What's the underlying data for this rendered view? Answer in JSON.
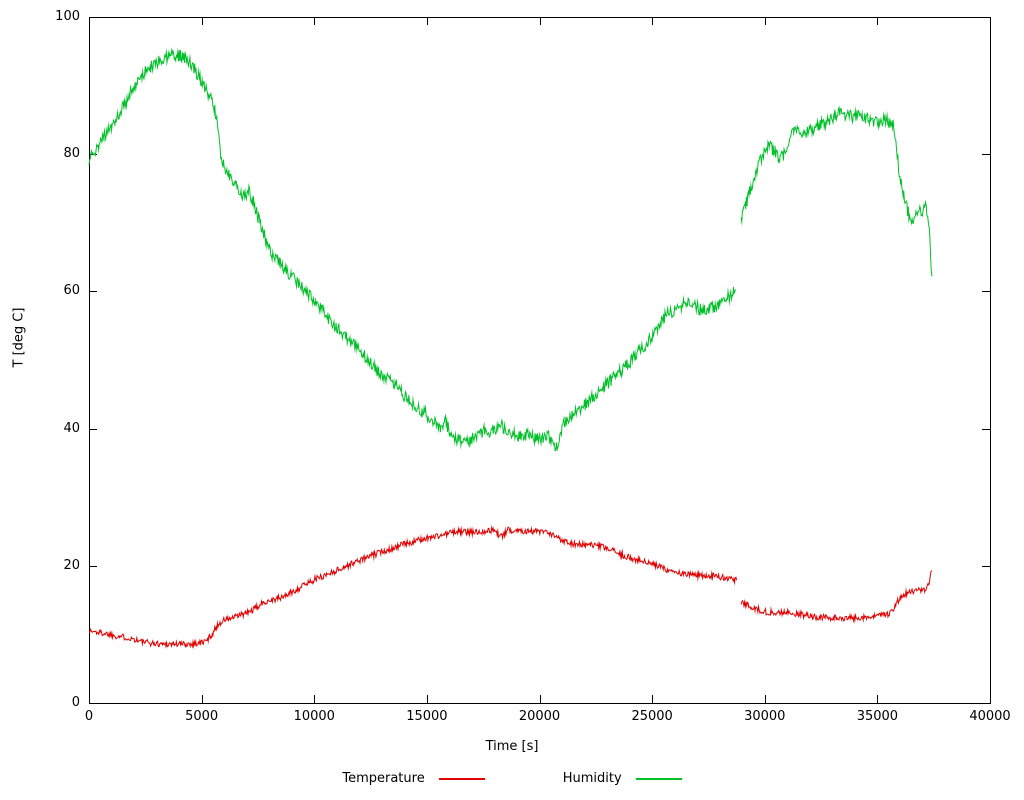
{
  "chart_data": {
    "type": "line",
    "title": "",
    "xlabel": "Time [s]",
    "ylabel": "T [deg C]",
    "xlim": [
      0,
      40000
    ],
    "ylim": [
      0,
      100
    ],
    "xticks": [
      0,
      5000,
      10000,
      15000,
      20000,
      25000,
      30000,
      35000,
      40000
    ],
    "yticks": [
      0,
      20,
      40,
      60,
      80,
      100
    ],
    "grid": false,
    "legend_position": "bottom-center",
    "background": "#ffffff",
    "axis_color": "#000000",
    "series": [
      {
        "name": "Temperature",
        "color": "#e10000",
        "noise": 0.45,
        "segments": [
          [
            [
              0,
              10.5
            ],
            [
              400,
              10.3
            ],
            [
              800,
              10.1
            ],
            [
              1200,
              9.8
            ],
            [
              1600,
              9.6
            ],
            [
              2000,
              9.3
            ],
            [
              2400,
              8.9
            ],
            [
              2800,
              8.7
            ],
            [
              3200,
              8.6
            ],
            [
              3600,
              8.6
            ],
            [
              4000,
              8.6
            ],
            [
              4400,
              8.6
            ],
            [
              4800,
              8.7
            ],
            [
              5200,
              9.0
            ],
            [
              5500,
              10.2
            ],
            [
              5700,
              11.3
            ],
            [
              5900,
              11.9
            ],
            [
              6100,
              12.2
            ],
            [
              6400,
              12.4
            ],
            [
              6700,
              12.8
            ],
            [
              7000,
              13.1
            ],
            [
              7300,
              13.6
            ],
            [
              7600,
              14.3
            ],
            [
              7900,
              14.9
            ],
            [
              8200,
              15.1
            ],
            [
              8500,
              15.3
            ],
            [
              8800,
              15.8
            ],
            [
              9100,
              16.3
            ],
            [
              9400,
              16.9
            ],
            [
              9700,
              17.5
            ],
            [
              10000,
              18.0
            ],
            [
              10400,
              18.5
            ],
            [
              10800,
              19.1
            ],
            [
              11200,
              19.6
            ],
            [
              11600,
              20.2
            ],
            [
              12000,
              20.8
            ],
            [
              12400,
              21.3
            ],
            [
              12800,
              21.8
            ],
            [
              13200,
              22.3
            ],
            [
              13600,
              22.7
            ],
            [
              14000,
              23.2
            ],
            [
              14400,
              23.5
            ],
            [
              14800,
              23.9
            ],
            [
              15200,
              24.2
            ],
            [
              15600,
              24.4
            ],
            [
              16000,
              24.8
            ],
            [
              16400,
              25.0
            ],
            [
              16800,
              24.9
            ],
            [
              17200,
              24.9
            ],
            [
              17600,
              25.1
            ],
            [
              18000,
              25.2
            ],
            [
              18300,
              24.2
            ],
            [
              18600,
              25.2
            ],
            [
              19000,
              25.2
            ],
            [
              19400,
              25.1
            ],
            [
              19800,
              25.0
            ],
            [
              20200,
              24.9
            ],
            [
              20600,
              24.4
            ],
            [
              21000,
              23.8
            ],
            [
              21400,
              23.3
            ],
            [
              21800,
              23.1
            ],
            [
              22200,
              23.0
            ],
            [
              22600,
              22.9
            ],
            [
              23000,
              22.5
            ],
            [
              23400,
              22.0
            ],
            [
              23800,
              21.4
            ],
            [
              24200,
              21.0
            ],
            [
              24600,
              20.6
            ],
            [
              25000,
              20.2
            ],
            [
              25400,
              19.8
            ],
            [
              25800,
              19.3
            ],
            [
              26200,
              18.9
            ],
            [
              26600,
              18.7
            ],
            [
              27000,
              18.6
            ],
            [
              27400,
              18.6
            ],
            [
              27800,
              18.5
            ],
            [
              28200,
              18.3
            ],
            [
              28600,
              18.0
            ],
            [
              28750,
              17.9
            ]
          ],
          [
            [
              28950,
              14.6
            ],
            [
              29200,
              14.3
            ],
            [
              29600,
              13.8
            ],
            [
              30000,
              13.3
            ],
            [
              30400,
              13.2
            ],
            [
              30800,
              13.2
            ],
            [
              31200,
              13.1
            ],
            [
              31600,
              12.9
            ],
            [
              32000,
              12.7
            ],
            [
              32400,
              12.5
            ],
            [
              32800,
              12.4
            ],
            [
              33200,
              12.4
            ],
            [
              33600,
              12.4
            ],
            [
              34000,
              12.4
            ],
            [
              34400,
              12.5
            ],
            [
              34800,
              12.6
            ],
            [
              35200,
              12.7
            ],
            [
              35500,
              13.0
            ],
            [
              35700,
              13.8
            ],
            [
              35900,
              14.8
            ],
            [
              36100,
              15.6
            ],
            [
              36300,
              16.0
            ],
            [
              36600,
              16.2
            ],
            [
              36900,
              16.4
            ],
            [
              37100,
              16.6
            ],
            [
              37250,
              17.0
            ],
            [
              37350,
              18.2
            ],
            [
              37420,
              19.3
            ]
          ]
        ]
      },
      {
        "name": "Humidity",
        "color": "#00c028",
        "noise": 0.9,
        "segments": [
          [
            [
              0,
              79.0
            ],
            [
              200,
              80.3
            ],
            [
              400,
              81.0
            ],
            [
              600,
              82.4
            ],
            [
              800,
              83.0
            ],
            [
              1000,
              84.3
            ],
            [
              1300,
              85.8
            ],
            [
              1600,
              87.5
            ],
            [
              1900,
              89.3
            ],
            [
              2200,
              90.8
            ],
            [
              2500,
              92.0
            ],
            [
              2800,
              93.0
            ],
            [
              3100,
              93.6
            ],
            [
              3400,
              94.0
            ],
            [
              3700,
              94.3
            ],
            [
              4000,
              94.4
            ],
            [
              4300,
              94.0
            ],
            [
              4600,
              92.8
            ],
            [
              4900,
              91.2
            ],
            [
              5200,
              89.5
            ],
            [
              5500,
              87.5
            ],
            [
              5700,
              85.0
            ],
            [
              5850,
              80.0
            ],
            [
              6000,
              78.2
            ],
            [
              6300,
              76.6
            ],
            [
              6600,
              75.2
            ],
            [
              6900,
              73.8
            ],
            [
              7100,
              74.6
            ],
            [
              7300,
              73.0
            ],
            [
              7500,
              70.8
            ],
            [
              7700,
              69.0
            ],
            [
              7900,
              67.0
            ],
            [
              8100,
              65.5
            ],
            [
              8400,
              64.3
            ],
            [
              8700,
              63.2
            ],
            [
              9000,
              62.2
            ],
            [
              9300,
              61.2
            ],
            [
              9600,
              60.2
            ],
            [
              10000,
              58.8
            ],
            [
              10300,
              57.4
            ],
            [
              10600,
              56.2
            ],
            [
              11000,
              54.8
            ],
            [
              11400,
              53.4
            ],
            [
              11800,
              52.2
            ],
            [
              12200,
              50.8
            ],
            [
              12600,
              49.3
            ],
            [
              13000,
              48.0
            ],
            [
              13400,
              46.8
            ],
            [
              13800,
              45.5
            ],
            [
              14200,
              44.0
            ],
            [
              14600,
              43.0
            ],
            [
              15000,
              42.0
            ],
            [
              15300,
              41.0
            ],
            [
              15600,
              40.0
            ],
            [
              15800,
              41.3
            ],
            [
              16000,
              39.6
            ],
            [
              16300,
              38.6
            ],
            [
              16600,
              38.0
            ],
            [
              17000,
              38.5
            ],
            [
              17300,
              39.1
            ],
            [
              17600,
              40.0
            ],
            [
              17800,
              39.0
            ],
            [
              18000,
              40.0
            ],
            [
              18300,
              40.4
            ],
            [
              18600,
              39.6
            ],
            [
              19000,
              39.1
            ],
            [
              19300,
              38.6
            ],
            [
              19600,
              39.4
            ],
            [
              19800,
              38.6
            ],
            [
              20100,
              38.4
            ],
            [
              20400,
              38.9
            ],
            [
              20600,
              37.8
            ],
            [
              20850,
              37.2
            ],
            [
              21000,
              40.3
            ],
            [
              21200,
              41.4
            ],
            [
              21600,
              42.2
            ],
            [
              22000,
              43.4
            ],
            [
              22500,
              45.0
            ],
            [
              23000,
              46.5
            ],
            [
              23500,
              48.0
            ],
            [
              24000,
              49.6
            ],
            [
              24300,
              51.0
            ],
            [
              24700,
              52.2
            ],
            [
              25000,
              53.5
            ],
            [
              25300,
              55.0
            ],
            [
              25600,
              56.4
            ],
            [
              26000,
              57.4
            ],
            [
              26300,
              57.9
            ],
            [
              26600,
              58.4
            ],
            [
              26900,
              58.0
            ],
            [
              27200,
              57.2
            ],
            [
              27500,
              57.3
            ],
            [
              27800,
              57.8
            ],
            [
              28100,
              58.3
            ],
            [
              28400,
              59.2
            ],
            [
              28700,
              60.3
            ]
          ],
          [
            [
              28950,
              70.6
            ],
            [
              29100,
              72.0
            ],
            [
              29300,
              74.2
            ],
            [
              29500,
              76.2
            ],
            [
              29800,
              79.0
            ],
            [
              30000,
              80.6
            ],
            [
              30200,
              81.2
            ],
            [
              30400,
              80.6
            ],
            [
              30600,
              79.6
            ],
            [
              30800,
              79.6
            ],
            [
              31000,
              81.4
            ],
            [
              31200,
              82.8
            ],
            [
              31500,
              83.5
            ],
            [
              31800,
              83.1
            ],
            [
              32100,
              83.6
            ],
            [
              32400,
              84.1
            ],
            [
              32700,
              84.6
            ],
            [
              33000,
              85.4
            ],
            [
              33300,
              86.0
            ],
            [
              33600,
              85.6
            ],
            [
              33900,
              85.5
            ],
            [
              34200,
              86.0
            ],
            [
              34500,
              85.2
            ],
            [
              34800,
              84.6
            ],
            [
              35100,
              84.6
            ],
            [
              35400,
              85.0
            ],
            [
              35700,
              84.4
            ],
            [
              35850,
              80.5
            ],
            [
              36000,
              76.5
            ],
            [
              36200,
              73.6
            ],
            [
              36400,
              71.2
            ],
            [
              36600,
              70.6
            ],
            [
              36800,
              72.2
            ],
            [
              37000,
              71.4
            ],
            [
              37100,
              73.0
            ],
            [
              37200,
              71.8
            ],
            [
              37300,
              69.8
            ],
            [
              37360,
              65.0
            ],
            [
              37420,
              62.2
            ]
          ]
        ]
      }
    ]
  }
}
